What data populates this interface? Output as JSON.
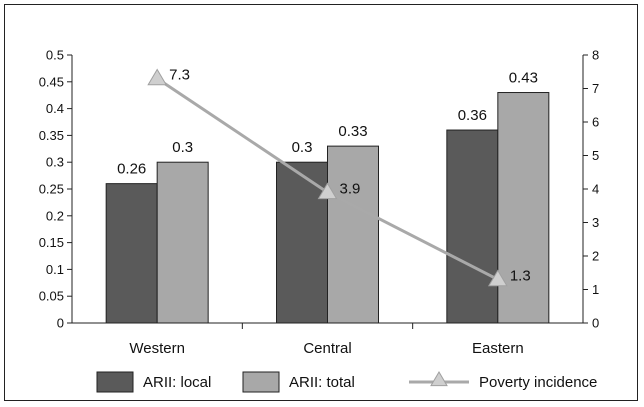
{
  "chart_data": {
    "type": "bar",
    "categories": [
      "Western",
      "Central",
      "Eastern"
    ],
    "series": [
      {
        "name": "ARII: local",
        "axis": "left",
        "kind": "bar",
        "color": "#5a5a5a",
        "values": [
          0.26,
          0.3,
          0.36
        ],
        "labels": [
          "0.26",
          "0.3",
          "0.36"
        ]
      },
      {
        "name": "ARII: total",
        "axis": "left",
        "kind": "bar",
        "color": "#a8a8a8",
        "values": [
          0.3,
          0.33,
          0.43
        ],
        "labels": [
          "0.3",
          "0.33",
          "0.43"
        ]
      },
      {
        "name": "Poverty incidence",
        "axis": "right",
        "kind": "line",
        "color": "#a9a9a9",
        "marker": "triangle",
        "values": [
          7.3,
          3.9,
          1.3
        ],
        "labels": [
          "7.3",
          "3.9",
          "1.3"
        ]
      }
    ],
    "y_left": {
      "min": 0,
      "max": 0.5,
      "ticks": [
        "0",
        "0.05",
        "0.1",
        "0.15",
        "0.2",
        "0.25",
        "0.3",
        "0.35",
        "0.4",
        "0.45",
        "0.5"
      ]
    },
    "y_right": {
      "min": 0,
      "max": 8,
      "ticks": [
        "0",
        "1",
        "2",
        "3",
        "4",
        "5",
        "6",
        "7",
        "8"
      ]
    },
    "legend_position": "bottom",
    "grid": false
  }
}
